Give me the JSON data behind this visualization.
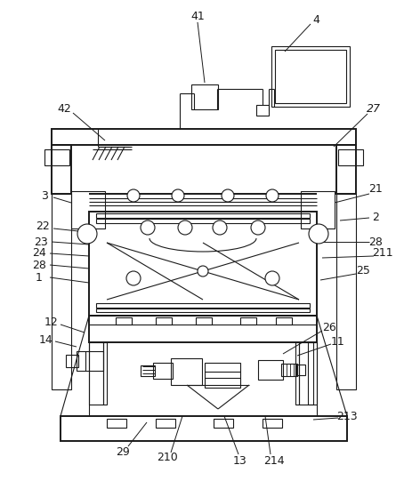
{
  "fig_width": 4.54,
  "fig_height": 5.59,
  "dpi": 100,
  "bg_color": "#ffffff",
  "line_color": "#1a1a1a",
  "lw": 0.8,
  "lw2": 1.4
}
